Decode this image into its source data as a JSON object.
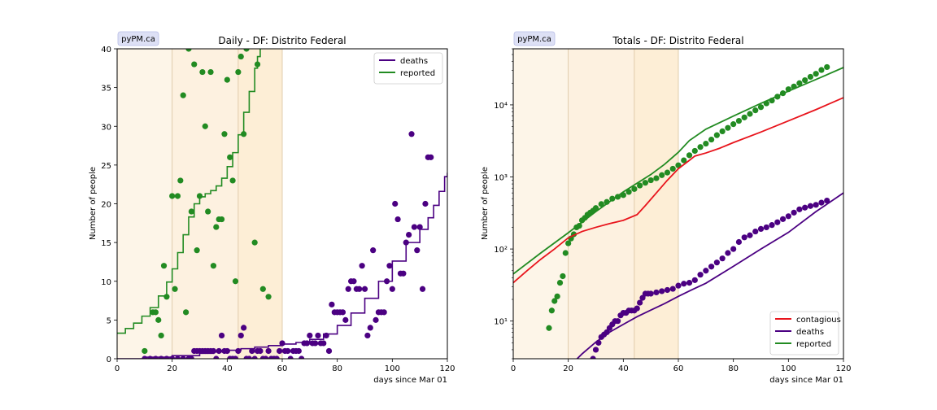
{
  "chart_data": [
    {
      "type": "scatter",
      "badge": "pyPM.ca",
      "title": "Daily - DF: Distrito Federal",
      "xlabel": "days since Mar 01",
      "ylabel": "Number of people",
      "xlim": [
        0,
        120
      ],
      "ylim": [
        0,
        40
      ],
      "yscale": "linear",
      "xticks": [
        "0",
        "20",
        "40",
        "60",
        "80",
        "100",
        "120"
      ],
      "yticks": [
        "0",
        "5",
        "10",
        "15",
        "20",
        "25",
        "30",
        "35",
        "40"
      ],
      "shaded_periods": [
        {
          "x": [
            0,
            20
          ],
          "color": "#fdf5e8"
        },
        {
          "x": [
            20,
            44
          ],
          "color": "#fdf1e0"
        },
        {
          "x": [
            44,
            60
          ],
          "color": "#fdeed6"
        }
      ],
      "legend": {
        "position": "top-right",
        "entries": [
          "deaths",
          "reported"
        ]
      },
      "series": [
        {
          "name": "deaths",
          "kind": "step-line",
          "color": "#4b0082",
          "x": [
            0,
            10,
            20,
            30,
            35,
            40,
            45,
            50,
            55,
            60,
            65,
            70,
            75,
            80,
            85,
            90,
            95,
            100,
            105,
            110,
            113,
            115,
            117,
            119,
            120
          ],
          "y": [
            0,
            0.2,
            0.4,
            0.7,
            0.9,
            1.1,
            1.3,
            1.5,
            1.7,
            1.9,
            2.1,
            2.5,
            3.2,
            4.3,
            5.9,
            7.8,
            10.0,
            12.6,
            15.0,
            16.7,
            18.2,
            19.8,
            21.6,
            23.5,
            24.0
          ]
        },
        {
          "name": "deaths-observed",
          "kind": "points",
          "color": "#4b0082",
          "x": [
            10,
            12,
            14,
            16,
            18,
            20,
            22,
            24,
            26,
            27,
            28,
            29,
            30,
            31,
            32,
            33,
            34,
            35,
            36,
            37,
            38,
            39,
            40,
            41,
            42,
            43,
            44,
            45,
            46,
            47,
            48,
            49,
            50,
            51,
            52,
            53,
            54,
            55,
            56,
            57,
            58,
            59,
            60,
            61,
            62,
            63,
            64,
            65,
            66,
            67,
            68,
            69,
            70,
            71,
            72,
            73,
            74,
            75,
            76,
            77,
            78,
            79,
            80,
            81,
            82,
            83,
            84,
            85,
            86,
            87,
            88,
            89,
            90,
            91,
            92,
            93,
            94,
            95,
            96,
            97,
            98,
            99,
            100,
            101,
            102,
            103,
            104,
            105,
            106,
            107,
            108,
            109,
            110,
            111,
            112,
            113,
            114
          ],
          "y": [
            0,
            0,
            0,
            0,
            0,
            0,
            0,
            0,
            0,
            0,
            1,
            1,
            1,
            1,
            1,
            1,
            1,
            1,
            0,
            1,
            3,
            1,
            1,
            0,
            0,
            0,
            1,
            3,
            4,
            0,
            0,
            1,
            0,
            1,
            1,
            0,
            0,
            1,
            0,
            0,
            0,
            1,
            2,
            1,
            1,
            0,
            1,
            1,
            1,
            0,
            2,
            2,
            3,
            2,
            2,
            3,
            2,
            2,
            3,
            1,
            7,
            6,
            6,
            6,
            6,
            5,
            9,
            10,
            10,
            9,
            9,
            12,
            9,
            3,
            4,
            14,
            5,
            6,
            6,
            6,
            10,
            12,
            9,
            20,
            18,
            11,
            11,
            15,
            16,
            29,
            17,
            14,
            17,
            9,
            20,
            26,
            26
          ]
        },
        {
          "name": "reported",
          "kind": "step-line",
          "color": "#228b22",
          "x": [
            0,
            3,
            6,
            9,
            12,
            15,
            18,
            20,
            22,
            24,
            26,
            28,
            30,
            32,
            34,
            36,
            38,
            40,
            42,
            44,
            46,
            48,
            50,
            51,
            52
          ],
          "y": [
            3.3,
            3.9,
            4.6,
            5.5,
            6.6,
            8.1,
            9.9,
            11.6,
            13.7,
            16.0,
            18.3,
            20.0,
            20.9,
            21.3,
            21.7,
            22.3,
            23.3,
            24.8,
            26.6,
            28.9,
            31.8,
            34.5,
            37.5,
            39.0,
            41.0
          ]
        },
        {
          "name": "reported-observed",
          "kind": "points",
          "color": "#228b22",
          "x": [
            10,
            13,
            14,
            15,
            16,
            17,
            18,
            20,
            21,
            22,
            23,
            24,
            25,
            26,
            27,
            28,
            29,
            30,
            31,
            32,
            33,
            34,
            35,
            36,
            37,
            38,
            39,
            40,
            41,
            42,
            43,
            44,
            45,
            46,
            47,
            48,
            50,
            51,
            53,
            55
          ],
          "y": [
            1,
            6,
            6,
            5,
            3,
            12,
            8,
            21,
            9,
            21,
            23,
            34,
            6,
            40,
            19,
            38,
            14,
            21,
            37,
            30,
            19,
            37,
            12,
            17,
            18,
            18,
            29,
            36,
            26,
            23,
            10,
            37,
            39,
            29,
            40,
            41,
            15,
            38,
            9,
            8
          ]
        }
      ]
    },
    {
      "type": "scatter",
      "badge": "pyPM.ca",
      "title": "Totals - DF: Distrito Federal",
      "xlabel": "days since Mar 01",
      "ylabel": "Number of people",
      "xlim": [
        0,
        120
      ],
      "ylim": [
        3,
        60000
      ],
      "yscale": "log",
      "xticks": [
        "0",
        "20",
        "40",
        "60",
        "80",
        "100",
        "120"
      ],
      "yticks": [
        {
          "value": 10,
          "label": "10¹"
        },
        {
          "value": 100,
          "label": "10²"
        },
        {
          "value": 1000,
          "label": "10³"
        },
        {
          "value": 10000,
          "label": "10⁴"
        }
      ],
      "shaded_periods": [
        {
          "x": [
            0,
            20
          ],
          "color": "#fdf5e8"
        },
        {
          "x": [
            20,
            44
          ],
          "color": "#fdf1e0"
        },
        {
          "x": [
            44,
            60
          ],
          "color": "#fdeed6"
        }
      ],
      "legend": {
        "position": "bottom-right",
        "entries": [
          "contagious",
          "deaths",
          "reported"
        ]
      },
      "series": [
        {
          "name": "contagious",
          "kind": "line",
          "color": "#e8141c",
          "x": [
            0,
            5,
            10,
            15,
            20,
            25,
            30,
            35,
            40,
            45,
            48,
            52,
            56,
            60,
            64,
            66,
            70,
            75,
            80,
            90,
            100,
            110,
            120
          ],
          "y": [
            34,
            50,
            72,
            100,
            143,
            175,
            200,
            225,
            250,
            300,
            400,
            600,
            900,
            1300,
            1700,
            1950,
            2150,
            2500,
            3000,
            4200,
            6000,
            8600,
            12600
          ]
        },
        {
          "name": "deaths",
          "kind": "line",
          "color": "#4b0082",
          "x": [
            22,
            25,
            30,
            35,
            40,
            45,
            50,
            55,
            60,
            65,
            70,
            80,
            90,
            100,
            110,
            120
          ],
          "y": [
            2.7,
            3.5,
            5.1,
            7.0,
            9.0,
            11.5,
            14.2,
            17.5,
            22.0,
            27.3,
            33.5,
            57.5,
            100,
            170,
            330,
            600
          ]
        },
        {
          "name": "deaths-observed",
          "kind": "points",
          "color": "#4b0082",
          "x": [
            29,
            30,
            31,
            32,
            33,
            34,
            35,
            36,
            37,
            38,
            39,
            40,
            41,
            42,
            43,
            44,
            45,
            46,
            47,
            48,
            49,
            50,
            52,
            54,
            56,
            58,
            60,
            62,
            64,
            66,
            68,
            70,
            72,
            74,
            76,
            78,
            80,
            82,
            84,
            86,
            88,
            90,
            92,
            94,
            96,
            98,
            100,
            102,
            104,
            106,
            108,
            110,
            112,
            114
          ],
          "y": [
            3,
            4,
            5,
            6,
            6.5,
            7,
            8,
            9,
            10,
            10,
            12,
            13,
            13,
            14,
            14,
            14,
            15,
            18,
            21,
            24,
            24,
            24,
            25,
            26,
            27,
            28,
            31,
            33,
            34,
            37,
            44,
            50,
            57,
            65,
            74,
            88,
            100,
            125,
            145,
            155,
            175,
            190,
            200,
            215,
            235,
            260,
            285,
            320,
            355,
            375,
            395,
            410,
            440,
            470
          ]
        },
        {
          "name": "reported",
          "kind": "line",
          "color": "#228b22",
          "x": [
            0,
            10,
            20,
            30,
            40,
            50,
            55,
            60,
            64,
            70,
            80,
            90,
            100,
            110,
            120
          ],
          "y": [
            45,
            88,
            168,
            330,
            620,
            1080,
            1500,
            2200,
            3200,
            4600,
            7000,
            10500,
            15500,
            22500,
            33000
          ]
        },
        {
          "name": "reported-observed",
          "kind": "points",
          "color": "#228b22",
          "x": [
            13,
            14,
            15,
            16,
            17,
            18,
            19,
            20,
            21,
            22,
            23,
            24,
            25,
            26,
            27,
            28,
            29,
            30,
            32,
            34,
            36,
            38,
            40,
            42,
            44,
            46,
            48,
            50,
            52,
            54,
            56,
            58,
            60,
            62,
            64,
            66,
            68,
            70,
            72,
            74,
            76,
            78,
            80,
            82,
            84,
            86,
            88,
            90,
            92,
            94,
            96,
            98,
            100,
            102,
            104,
            106,
            108,
            110,
            112,
            114
          ],
          "y": [
            8,
            14,
            19,
            22,
            34,
            42,
            88,
            120,
            140,
            160,
            200,
            210,
            250,
            270,
            300,
            320,
            340,
            370,
            420,
            450,
            500,
            530,
            560,
            620,
            680,
            760,
            830,
            900,
            960,
            1060,
            1150,
            1300,
            1450,
            1700,
            2000,
            2300,
            2600,
            2900,
            3300,
            3800,
            4300,
            4800,
            5400,
            6000,
            6700,
            7500,
            8400,
            9300,
            10500,
            11500,
            13000,
            14500,
            16500,
            18000,
            20000,
            22000,
            24500,
            27000,
            30500,
            33500
          ]
        }
      ]
    }
  ]
}
